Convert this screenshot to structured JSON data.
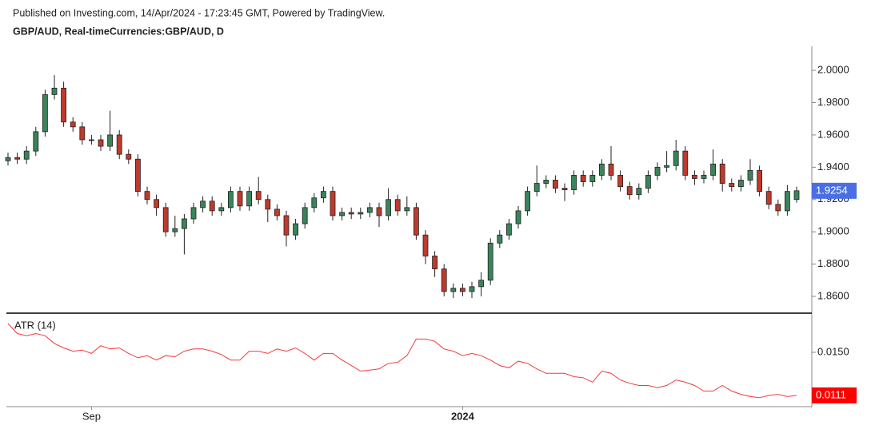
{
  "header": {
    "published": "Published on Investing.com, 14/Apr/2024 - 17:23:45 GMT, Powered by TradingView.",
    "symbol": "GBP/AUD, Real-timeCurrencies:GBP/AUD, D"
  },
  "chart_data": [
    {
      "type": "candlestick",
      "categories": [
        null,
        null,
        null,
        null,
        null,
        null,
        null,
        null,
        null,
        "Sep",
        null,
        null,
        null,
        null,
        null,
        null,
        null,
        null,
        null,
        null,
        null,
        null,
        null,
        null,
        null,
        null,
        null,
        null,
        null,
        null,
        null,
        null,
        null,
        null,
        null,
        null,
        null,
        null,
        null,
        null,
        null,
        null,
        null,
        null,
        null,
        null,
        null,
        null,
        null,
        "2024",
        null,
        null,
        null,
        null,
        null,
        null,
        null,
        null,
        null,
        null,
        null,
        null,
        null,
        null,
        null,
        null,
        null,
        null,
        null,
        null,
        null,
        null,
        null,
        null,
        null,
        null,
        null,
        null,
        null,
        null,
        null,
        null,
        null,
        null,
        null,
        null
      ],
      "open": [
        1.944,
        1.946,
        1.945,
        1.95,
        1.962,
        1.985,
        1.989,
        1.968,
        1.965,
        1.957,
        1.957,
        1.953,
        1.96,
        1.948,
        1.945,
        1.925,
        1.92,
        1.915,
        1.9,
        1.902,
        1.908,
        1.915,
        1.919,
        1.913,
        1.915,
        1.925,
        1.916,
        1.925,
        1.92,
        1.914,
        1.91,
        1.898,
        1.905,
        1.915,
        1.921,
        1.925,
        1.91,
        1.912,
        1.911,
        1.912,
        1.915,
        1.91,
        1.92,
        1.913,
        1.915,
        1.898,
        1.885,
        1.877,
        1.863,
        1.865,
        1.863,
        1.866,
        1.87,
        1.893,
        1.898,
        1.905,
        1.913,
        1.925,
        1.93,
        1.932,
        1.927,
        1.926,
        1.935,
        1.931,
        1.935,
        1.942,
        1.935,
        1.928,
        1.923,
        1.927,
        1.935,
        1.94,
        1.941,
        1.95,
        1.935,
        1.933,
        1.935,
        1.942,
        1.93,
        1.928,
        1.932,
        1.938,
        1.925,
        1.917,
        1.913,
        1.92
      ],
      "high": [
        1.949,
        1.949,
        1.953,
        1.965,
        1.988,
        1.997,
        1.993,
        1.971,
        1.968,
        1.96,
        1.96,
        1.975,
        1.963,
        1.951,
        1.948,
        1.928,
        1.923,
        1.918,
        1.91,
        1.911,
        1.918,
        1.922,
        1.922,
        1.918,
        1.928,
        1.928,
        1.928,
        1.934,
        1.923,
        1.917,
        1.913,
        1.908,
        1.918,
        1.924,
        1.928,
        1.928,
        1.915,
        1.915,
        1.915,
        1.918,
        1.918,
        1.927,
        1.923,
        1.922,
        1.918,
        1.901,
        1.888,
        1.88,
        1.868,
        1.868,
        1.869,
        1.875,
        1.896,
        1.901,
        1.908,
        1.916,
        1.928,
        1.941,
        1.935,
        1.935,
        1.93,
        1.938,
        1.938,
        1.938,
        1.945,
        1.953,
        1.938,
        1.931,
        1.93,
        1.938,
        1.943,
        1.95,
        1.957,
        1.953,
        1.938,
        1.938,
        1.951,
        1.945,
        1.933,
        1.935,
        1.945,
        1.941,
        1.928,
        1.92,
        1.929,
        1.928
      ],
      "low": [
        1.941,
        1.942,
        1.942,
        1.947,
        1.959,
        1.982,
        1.965,
        1.962,
        1.954,
        1.954,
        1.95,
        1.95,
        1.945,
        1.942,
        1.922,
        1.917,
        1.91,
        1.897,
        1.897,
        1.886,
        1.905,
        1.912,
        1.91,
        1.91,
        1.912,
        1.913,
        1.913,
        1.917,
        1.906,
        1.907,
        1.891,
        1.895,
        1.902,
        1.912,
        1.918,
        1.907,
        1.907,
        1.908,
        1.908,
        1.909,
        1.903,
        1.907,
        1.91,
        1.91,
        1.895,
        1.88,
        1.872,
        1.86,
        1.859,
        1.86,
        1.859,
        1.86,
        1.867,
        1.89,
        1.895,
        1.902,
        1.91,
        1.922,
        1.927,
        1.924,
        1.919,
        1.923,
        1.928,
        1.928,
        1.932,
        1.932,
        1.925,
        1.92,
        1.92,
        1.924,
        1.932,
        1.937,
        1.938,
        1.932,
        1.929,
        1.93,
        1.932,
        1.925,
        1.925,
        1.925,
        1.929,
        1.922,
        1.914,
        1.91,
        1.91,
        1.918
      ],
      "close": [
        1.946,
        1.945,
        1.95,
        1.962,
        1.985,
        1.989,
        1.968,
        1.965,
        1.957,
        1.957,
        1.953,
        1.96,
        1.948,
        1.945,
        1.925,
        1.92,
        1.915,
        1.9,
        1.902,
        1.908,
        1.915,
        1.919,
        1.913,
        1.915,
        1.925,
        1.916,
        1.925,
        1.92,
        1.914,
        1.91,
        1.898,
        1.905,
        1.915,
        1.921,
        1.925,
        1.91,
        1.912,
        1.911,
        1.912,
        1.915,
        1.91,
        1.92,
        1.913,
        1.915,
        1.898,
        1.885,
        1.877,
        1.863,
        1.865,
        1.863,
        1.866,
        1.87,
        1.893,
        1.898,
        1.905,
        1.913,
        1.925,
        1.93,
        1.932,
        1.927,
        1.926,
        1.935,
        1.931,
        1.935,
        1.942,
        1.935,
        1.928,
        1.923,
        1.927,
        1.935,
        1.94,
        1.941,
        1.95,
        1.935,
        1.933,
        1.935,
        1.942,
        1.93,
        1.928,
        1.932,
        1.938,
        1.925,
        1.917,
        1.913,
        1.925,
        1.9254
      ],
      "up_color": "#39845a",
      "down_color": "#c0392b",
      "ylim": [
        1.8496,
        2.0139
      ],
      "yticks": [
        {
          "value": 1.86,
          "label": "1.8600"
        },
        {
          "value": 1.88,
          "label": "1.8800"
        },
        {
          "value": 1.9,
          "label": "1.9000"
        },
        {
          "value": 1.92,
          "label": "1.9200"
        },
        {
          "value": 1.94,
          "label": "1.9400"
        },
        {
          "value": 1.96,
          "label": "1.9600"
        },
        {
          "value": 1.98,
          "label": "1.9800"
        },
        {
          "value": 2.0,
          "label": "2.0000"
        }
      ],
      "last_label": {
        "value": 1.9254,
        "label": "1.9254"
      },
      "last_color": "#4a6fe3"
    },
    {
      "type": "line",
      "title": "ATR (14)",
      "values": [
        0.0176,
        0.0167,
        0.0165,
        0.0167,
        0.0165,
        0.0158,
        0.0154,
        0.0151,
        0.0152,
        0.0149,
        0.0156,
        0.0153,
        0.0154,
        0.0149,
        0.0145,
        0.0147,
        0.0143,
        0.0147,
        0.0146,
        0.0151,
        0.0153,
        0.0153,
        0.0151,
        0.0148,
        0.0143,
        0.0143,
        0.0151,
        0.0151,
        0.0149,
        0.0153,
        0.0151,
        0.0154,
        0.0149,
        0.0143,
        0.0149,
        0.0149,
        0.0143,
        0.0138,
        0.0133,
        0.0134,
        0.0135,
        0.014,
        0.0141,
        0.0147,
        0.0162,
        0.0162,
        0.016,
        0.0153,
        0.0151,
        0.0147,
        0.0149,
        0.0147,
        0.0143,
        0.0138,
        0.0136,
        0.0142,
        0.014,
        0.0135,
        0.0131,
        0.0131,
        0.0131,
        0.0128,
        0.0127,
        0.0123,
        0.0133,
        0.0131,
        0.0125,
        0.0122,
        0.012,
        0.012,
        0.0118,
        0.012,
        0.0125,
        0.0123,
        0.012,
        0.0115,
        0.0115,
        0.012,
        0.0115,
        0.0112,
        0.011,
        0.0109,
        0.0111,
        0.0112,
        0.011,
        0.0111
      ],
      "color": "#f23a3a",
      "ylim": [
        0.01016,
        0.01854
      ],
      "yticks": [
        {
          "value": 0.015,
          "label": "0.0150"
        }
      ],
      "last_label": {
        "value": 0.0111,
        "label": "0.0111"
      },
      "last_color": "#ff0000"
    }
  ]
}
